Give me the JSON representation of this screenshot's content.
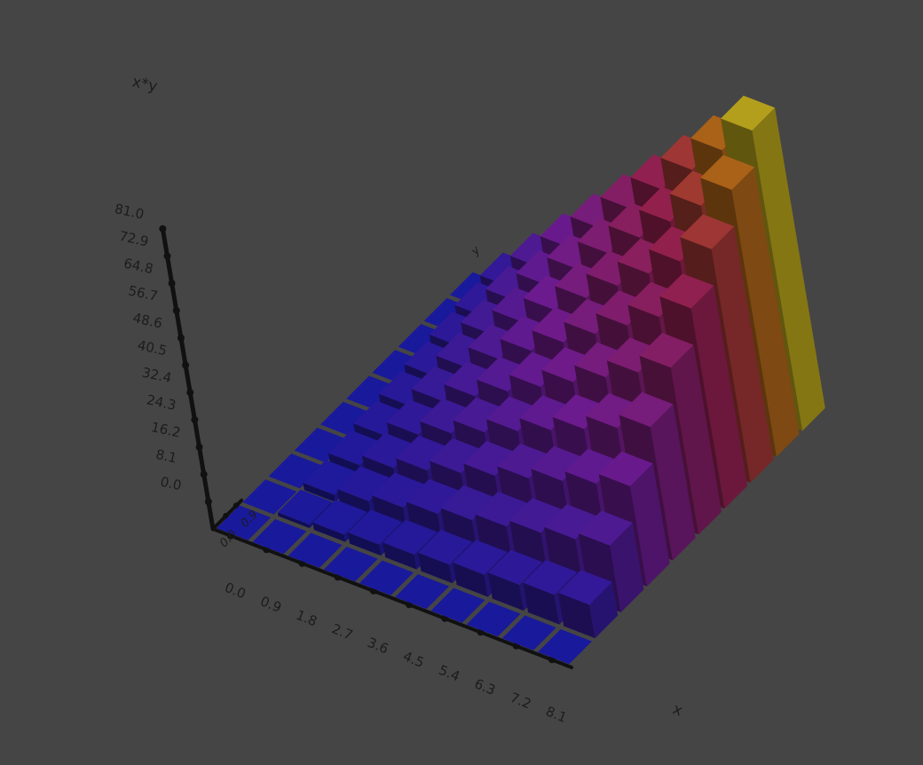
{
  "chart_data": {
    "type": "bar3d",
    "xlabel": "x",
    "ylabel": "y",
    "zlabel": "x*y",
    "x_ticks": [
      "0.0",
      "0.9",
      "1.8",
      "2.7",
      "3.6",
      "4.5",
      "5.4",
      "6.3",
      "7.2",
      "8.1"
    ],
    "y_ticks": [
      "0.0",
      "0.9"
    ],
    "z_ticks": [
      "0.0",
      "8.1",
      "16.2",
      "24.3",
      "32.4",
      "40.5",
      "48.6",
      "56.7",
      "64.8",
      "72.9",
      "81.0"
    ],
    "x": [
      0,
      1,
      2,
      3,
      4,
      5,
      6,
      7,
      8,
      9
    ],
    "y": [
      0,
      1,
      2,
      3,
      4,
      5,
      6,
      7,
      8,
      9
    ],
    "z": "x*y",
    "zlim": [
      0,
      81
    ],
    "colormap": [
      "#2020c8",
      "#8a22b4",
      "#c02a5a",
      "#d8701e",
      "#e6cc22"
    ],
    "background": "#454545"
  }
}
